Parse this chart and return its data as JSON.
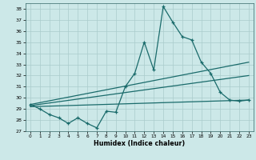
{
  "xlabel": "Humidex (Indice chaleur)",
  "bg_color": "#cce8e8",
  "line_color": "#1a6b6b",
  "grid_color": "#aacccc",
  "ylim": [
    27,
    38.5
  ],
  "xlim": [
    -0.5,
    23.5
  ],
  "yticks": [
    27,
    28,
    29,
    30,
    31,
    32,
    33,
    34,
    35,
    36,
    37,
    38
  ],
  "xticks": [
    0,
    1,
    2,
    3,
    4,
    5,
    6,
    7,
    8,
    9,
    10,
    11,
    12,
    13,
    14,
    15,
    16,
    17,
    18,
    19,
    20,
    21,
    22,
    23
  ],
  "main_x": [
    0,
    1,
    2,
    3,
    4,
    5,
    6,
    7,
    8,
    9,
    10,
    11,
    12,
    13,
    14,
    15,
    16,
    17,
    18,
    19,
    20,
    21,
    22,
    23
  ],
  "main_y": [
    29.4,
    29.0,
    28.5,
    28.2,
    27.7,
    28.2,
    27.7,
    27.3,
    28.8,
    28.7,
    31.0,
    32.2,
    35.0,
    32.5,
    38.2,
    36.8,
    35.5,
    35.2,
    33.2,
    32.2,
    30.5,
    29.8,
    29.7,
    29.8
  ],
  "upper_line_x": [
    0,
    23
  ],
  "upper_line_y": [
    29.4,
    33.2
  ],
  "mid_line_x": [
    0,
    23
  ],
  "mid_line_y": [
    29.3,
    32.0
  ],
  "lower_line_x": [
    0,
    23
  ],
  "lower_line_y": [
    29.2,
    29.8
  ]
}
